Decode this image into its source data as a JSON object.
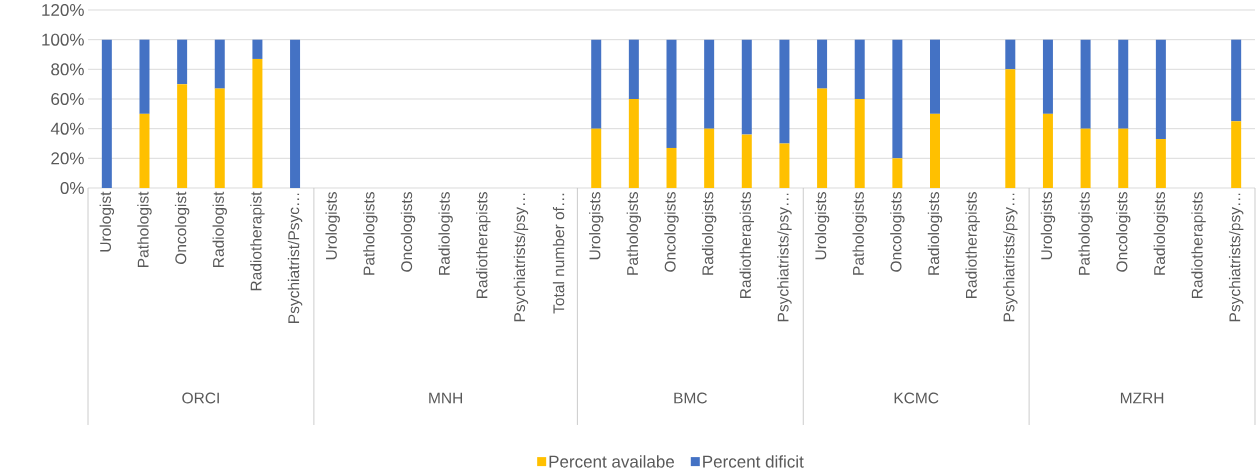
{
  "chart_data": {
    "type": "bar",
    "stacked": true,
    "categories": [
      "Urologist",
      "Pathologist",
      "Oncologist",
      "Radiologist",
      "Radiotherapist",
      "Psychiatrist/Psyc…",
      "Urologists",
      "Pathologists",
      "Oncologists",
      "Radiologists",
      "Radiotherapists",
      "Psychiatrists/psy…",
      "Total number of…",
      "Urologists",
      "Pathologists",
      "Oncologists",
      "Radiologists",
      "Radiotherapists",
      "Psychiatrists/psy…",
      "Urologists",
      "Pathologists",
      "Oncologists",
      "Radiologists",
      "Radiotherapists",
      "Psychiatrists/psy…",
      "Urologists",
      "Pathologists",
      "Oncologists",
      "Radiologists",
      "Radiotherapists",
      "Psychiatrists/psy…"
    ],
    "series": [
      {
        "name": "Percent availabe",
        "color": "#ffc000",
        "values": [
          0,
          0.5,
          0.7,
          0.67,
          0.87,
          0,
          null,
          null,
          null,
          null,
          null,
          null,
          null,
          0.4,
          0.6,
          0.27,
          0.4,
          0.36,
          0.3,
          0.67,
          0.6,
          0.2,
          0.5,
          null,
          0.8,
          0.5,
          0.4,
          0.4,
          0.33,
          null,
          0.45
        ]
      },
      {
        "name": "Percent dificit",
        "color": "#4472c4",
        "values": [
          1,
          0.5,
          0.3,
          0.33,
          0.13,
          1,
          null,
          null,
          null,
          null,
          null,
          null,
          null,
          0.6,
          0.4,
          0.73,
          0.6,
          0.64,
          0.7,
          0.33,
          0.4,
          0.8,
          0.5,
          null,
          0.2,
          0.5,
          0.6,
          0.6,
          0.67,
          null,
          0.55
        ]
      }
    ],
    "ylim": [
      0,
      1.2
    ],
    "yticks": [
      {
        "value": 0,
        "label": "0%"
      },
      {
        "value": 0.2,
        "label": "20%"
      },
      {
        "value": 0.4,
        "label": "40%"
      },
      {
        "value": 0.6,
        "label": "60%"
      },
      {
        "value": 0.8,
        "label": "80%"
      },
      {
        "value": 1.0,
        "label": "100%"
      },
      {
        "value": 1.2,
        "label": "120%"
      }
    ],
    "annotations": [
      "ORCI",
      "MNH",
      "BMC",
      "KCMC",
      "MZRH"
    ],
    "grid": "y",
    "legend": "bottom"
  }
}
